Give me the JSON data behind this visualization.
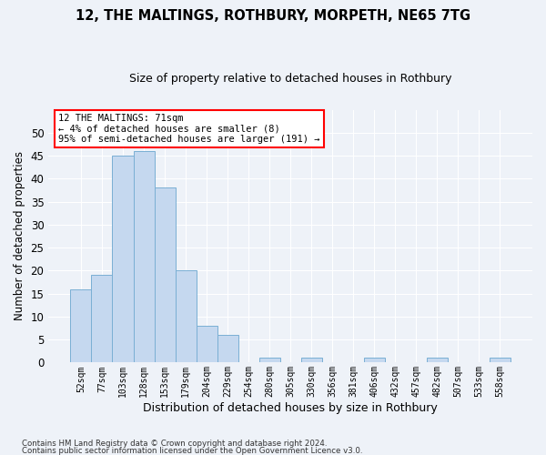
{
  "title1": "12, THE MALTINGS, ROTHBURY, MORPETH, NE65 7TG",
  "title2": "Size of property relative to detached houses in Rothbury",
  "xlabel": "Distribution of detached houses by size in Rothbury",
  "ylabel": "Number of detached properties",
  "categories": [
    "52sqm",
    "77sqm",
    "103sqm",
    "128sqm",
    "153sqm",
    "179sqm",
    "204sqm",
    "229sqm",
    "254sqm",
    "280sqm",
    "305sqm",
    "330sqm",
    "356sqm",
    "381sqm",
    "406sqm",
    "432sqm",
    "457sqm",
    "482sqm",
    "507sqm",
    "533sqm",
    "558sqm"
  ],
  "values": [
    16,
    19,
    45,
    46,
    38,
    20,
    8,
    6,
    0,
    1,
    0,
    1,
    0,
    0,
    1,
    0,
    0,
    1,
    0,
    0,
    1
  ],
  "bar_color": "#c5d8ef",
  "bar_edge_color": "#7aafd4",
  "annotation_text": "12 THE MALTINGS: 71sqm\n← 4% of detached houses are smaller (8)\n95% of semi-detached houses are larger (191) →",
  "annotation_box_color": "white",
  "annotation_box_edgecolor": "red",
  "ylim": [
    0,
    55
  ],
  "yticks": [
    0,
    5,
    10,
    15,
    20,
    25,
    30,
    35,
    40,
    45,
    50
  ],
  "footer1": "Contains HM Land Registry data © Crown copyright and database right 2024.",
  "footer2": "Contains public sector information licensed under the Open Government Licence v3.0.",
  "background_color": "#eef2f8",
  "grid_color": "#ffffff"
}
